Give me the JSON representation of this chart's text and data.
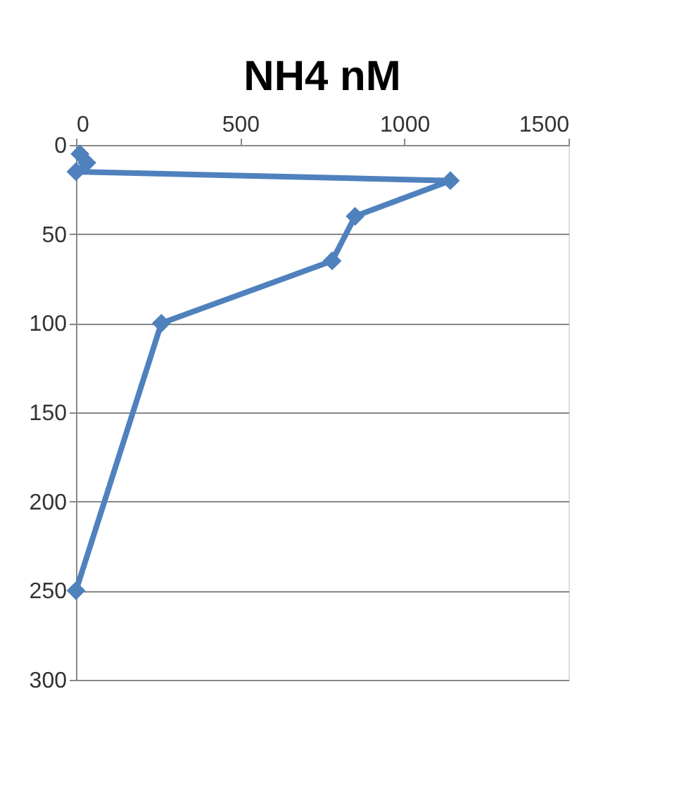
{
  "chart_data": {
    "type": "line",
    "title": "NH4 nM",
    "series": [
      {
        "color": "#4f81bd",
        "x": [
          12,
          33,
          0,
          1140,
          850,
          780,
          260,
          0
        ],
        "values": [
          5,
          10,
          15,
          20,
          40,
          65,
          100,
          250
        ]
      }
    ],
    "xlim": [
      0,
      1500
    ],
    "xticks": [
      0,
      500,
      1000,
      1500
    ],
    "ylim": [
      300,
      0
    ],
    "yticks": [
      0,
      50,
      100,
      150,
      200,
      250,
      300
    ],
    "grid": "y",
    "marker": "diamond",
    "line_style": "solid"
  }
}
